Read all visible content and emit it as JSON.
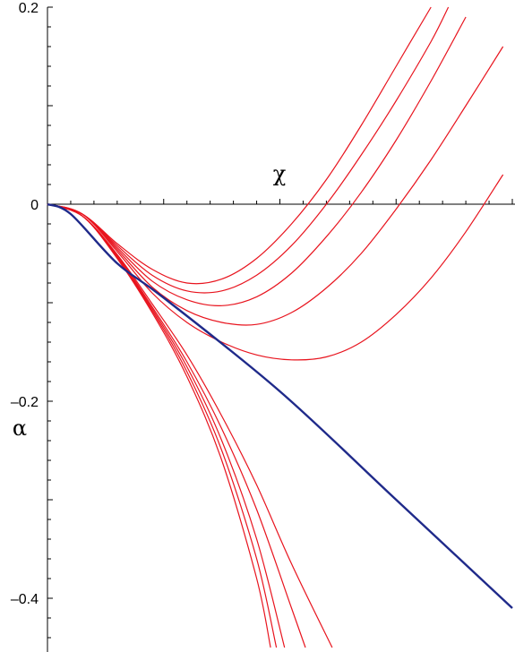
{
  "chart_data": {
    "type": "line",
    "title": "",
    "xlabel": "χ",
    "ylabel": "α",
    "ylim": [
      -0.45,
      0.2
    ],
    "xlim": [
      0,
      4.0
    ],
    "ytick_labels": [
      "0.2",
      "0",
      "–0.2",
      "–0.4"
    ],
    "ytick_values": [
      0.2,
      0,
      -0.2,
      -0.4
    ],
    "colors": {
      "family": "#e8141e",
      "asymptote": "#1f2a8a",
      "axes": "#000000"
    },
    "asymptote": {
      "x": [
        0.0,
        0.2,
        0.6,
        1.0,
        2.0,
        3.0,
        4.0
      ],
      "y": [
        0.0,
        -0.01,
        -0.06,
        -0.095,
        -0.19,
        -0.3,
        -0.41
      ]
    },
    "upper_branches": [
      {
        "x": [
          0.0,
          0.3,
          0.6,
          0.9,
          1.2,
          1.5,
          1.8,
          2.1,
          2.4,
          2.7,
          3.0,
          3.3
        ],
        "y": [
          0.0,
          -0.01,
          -0.04,
          -0.066,
          -0.08,
          -0.076,
          -0.055,
          -0.02,
          0.025,
          0.08,
          0.14,
          0.2
        ]
      },
      {
        "x": [
          0.0,
          0.3,
          0.6,
          0.9,
          1.2,
          1.5,
          1.8,
          2.1,
          2.4,
          2.7,
          3.0,
          3.3,
          3.45
        ],
        "y": [
          0.0,
          -0.01,
          -0.042,
          -0.072,
          -0.088,
          -0.088,
          -0.072,
          -0.042,
          0.0,
          0.05,
          0.105,
          0.165,
          0.2
        ]
      },
      {
        "x": [
          0.0,
          0.3,
          0.6,
          0.9,
          1.2,
          1.5,
          1.8,
          2.1,
          2.4,
          2.7,
          3.0,
          3.3,
          3.6
        ],
        "y": [
          0.0,
          -0.01,
          -0.044,
          -0.078,
          -0.097,
          -0.103,
          -0.094,
          -0.07,
          -0.033,
          0.012,
          0.065,
          0.125,
          0.19
        ]
      },
      {
        "x": [
          0.0,
          0.3,
          0.6,
          0.9,
          1.2,
          1.5,
          1.8,
          2.1,
          2.4,
          2.7,
          3.0,
          3.3,
          3.6,
          3.92
        ],
        "y": [
          0.0,
          -0.01,
          -0.046,
          -0.084,
          -0.108,
          -0.12,
          -0.122,
          -0.11,
          -0.085,
          -0.05,
          -0.005,
          0.045,
          0.1,
          0.16
        ]
      },
      {
        "x": [
          0.0,
          0.3,
          0.6,
          0.9,
          1.2,
          1.5,
          1.8,
          2.1,
          2.4,
          2.7,
          3.0,
          3.3,
          3.6,
          3.92
        ],
        "y": [
          0.0,
          -0.01,
          -0.048,
          -0.09,
          -0.12,
          -0.14,
          -0.153,
          -0.158,
          -0.155,
          -0.14,
          -0.112,
          -0.075,
          -0.028,
          0.03
        ]
      }
    ],
    "lower_branches": [
      {
        "x": [
          0.0,
          0.3,
          0.6,
          0.9,
          1.2,
          1.5,
          1.8,
          1.92
        ],
        "y": [
          0.0,
          -0.012,
          -0.055,
          -0.11,
          -0.175,
          -0.26,
          -0.38,
          -0.45
        ]
      },
      {
        "x": [
          0.0,
          0.3,
          0.6,
          0.9,
          1.2,
          1.5,
          1.8,
          1.97
        ],
        "y": [
          0.0,
          -0.012,
          -0.054,
          -0.108,
          -0.17,
          -0.25,
          -0.36,
          -0.45
        ]
      },
      {
        "x": [
          0.0,
          0.3,
          0.6,
          0.9,
          1.2,
          1.5,
          1.8,
          2.04
        ],
        "y": [
          0.0,
          -0.012,
          -0.053,
          -0.106,
          -0.165,
          -0.24,
          -0.34,
          -0.45
        ]
      },
      {
        "x": [
          0.0,
          0.3,
          0.6,
          0.9,
          1.2,
          1.5,
          1.8,
          2.1,
          2.22
        ],
        "y": [
          0.0,
          -0.012,
          -0.052,
          -0.104,
          -0.16,
          -0.228,
          -0.31,
          -0.41,
          -0.45
        ]
      },
      {
        "x": [
          0.0,
          0.3,
          0.6,
          0.9,
          1.2,
          1.5,
          1.8,
          2.1,
          2.45
        ],
        "y": [
          0.0,
          -0.012,
          -0.051,
          -0.101,
          -0.153,
          -0.215,
          -0.285,
          -0.365,
          -0.45
        ]
      }
    ]
  }
}
